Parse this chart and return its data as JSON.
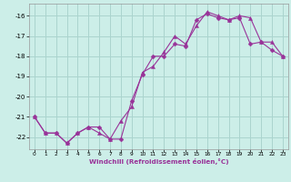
{
  "xlabel": "Windchill (Refroidissement éolien,°C)",
  "bg_color": "#cceee8",
  "grid_color": "#aad4ce",
  "line_color": "#993399",
  "xlim": [
    -0.5,
    23.5
  ],
  "ylim": [
    -22.6,
    -15.4
  ],
  "xticks": [
    0,
    1,
    2,
    3,
    4,
    5,
    6,
    7,
    8,
    9,
    10,
    11,
    12,
    13,
    14,
    15,
    16,
    17,
    18,
    19,
    20,
    21,
    22,
    23
  ],
  "yticks": [
    -22,
    -21,
    -20,
    -19,
    -18,
    -17,
    -16
  ],
  "series1_x": [
    0,
    1,
    2,
    3,
    4,
    5,
    6,
    7,
    8,
    9,
    10,
    11,
    12,
    13,
    14,
    15,
    16,
    17,
    18,
    19,
    20,
    21,
    22,
    23
  ],
  "series1_y": [
    -21.0,
    -21.8,
    -21.8,
    -22.3,
    -21.8,
    -21.5,
    -21.5,
    -22.1,
    -22.1,
    -20.2,
    -18.9,
    -18.0,
    -18.0,
    -17.4,
    -17.5,
    -16.2,
    -15.9,
    -16.1,
    -16.2,
    -16.1,
    -17.4,
    -17.3,
    -17.7,
    -18.0
  ],
  "series2_x": [
    0,
    1,
    2,
    3,
    4,
    5,
    6,
    7,
    8,
    9,
    10,
    11,
    12,
    13,
    14,
    15,
    16,
    17,
    18,
    19,
    20,
    21,
    22,
    23
  ],
  "series2_y": [
    -21.0,
    -21.8,
    -21.8,
    -22.3,
    -21.8,
    -21.5,
    -21.8,
    -22.1,
    -21.2,
    -20.5,
    -18.8,
    -18.5,
    -17.8,
    -17.0,
    -17.4,
    -16.5,
    -15.8,
    -16.0,
    -16.2,
    -16.0,
    -16.1,
    -17.3,
    -17.3,
    -18.0
  ]
}
